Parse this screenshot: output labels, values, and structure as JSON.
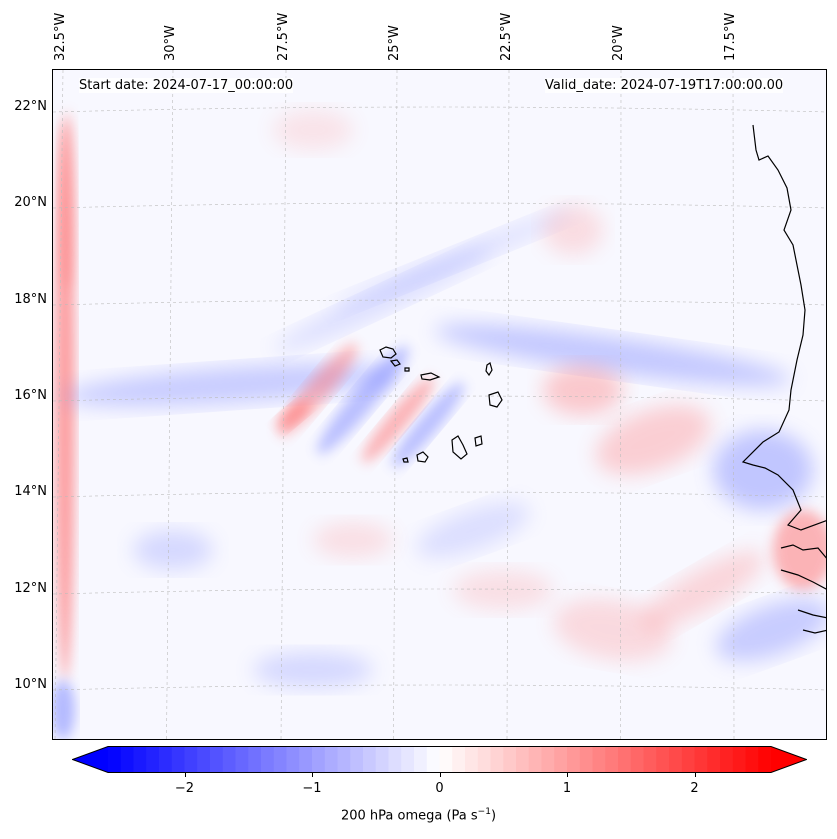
{
  "header": {
    "start_date": "Start date: 2024-07-17_00:00:00",
    "valid_date": "Valid_date: 2024-07-19T17:00:00.00"
  },
  "map": {
    "lon_labels": [
      "32.5°W",
      "30°W",
      "27.5°W",
      "25°W",
      "22.5°W",
      "20°W",
      "17.5°W"
    ],
    "lat_labels": [
      "22°N",
      "20°N",
      "18°N",
      "16°N",
      "14°N",
      "12°N",
      "10°N"
    ],
    "colors": {
      "negative": "#0000ff",
      "neutral": "#ffffff",
      "positive": "#ff0000",
      "coast": "#000000"
    }
  },
  "colorbar": {
    "ticks": [
      "−2",
      "−1",
      "0",
      "1",
      "2"
    ],
    "tick_values": [
      -2,
      -1,
      0,
      1,
      2
    ],
    "range": [
      -2.6,
      2.6
    ],
    "label_prefix": "200 hPa omega (Pa s",
    "label_sup": "−1",
    "label_suffix": ")"
  }
}
